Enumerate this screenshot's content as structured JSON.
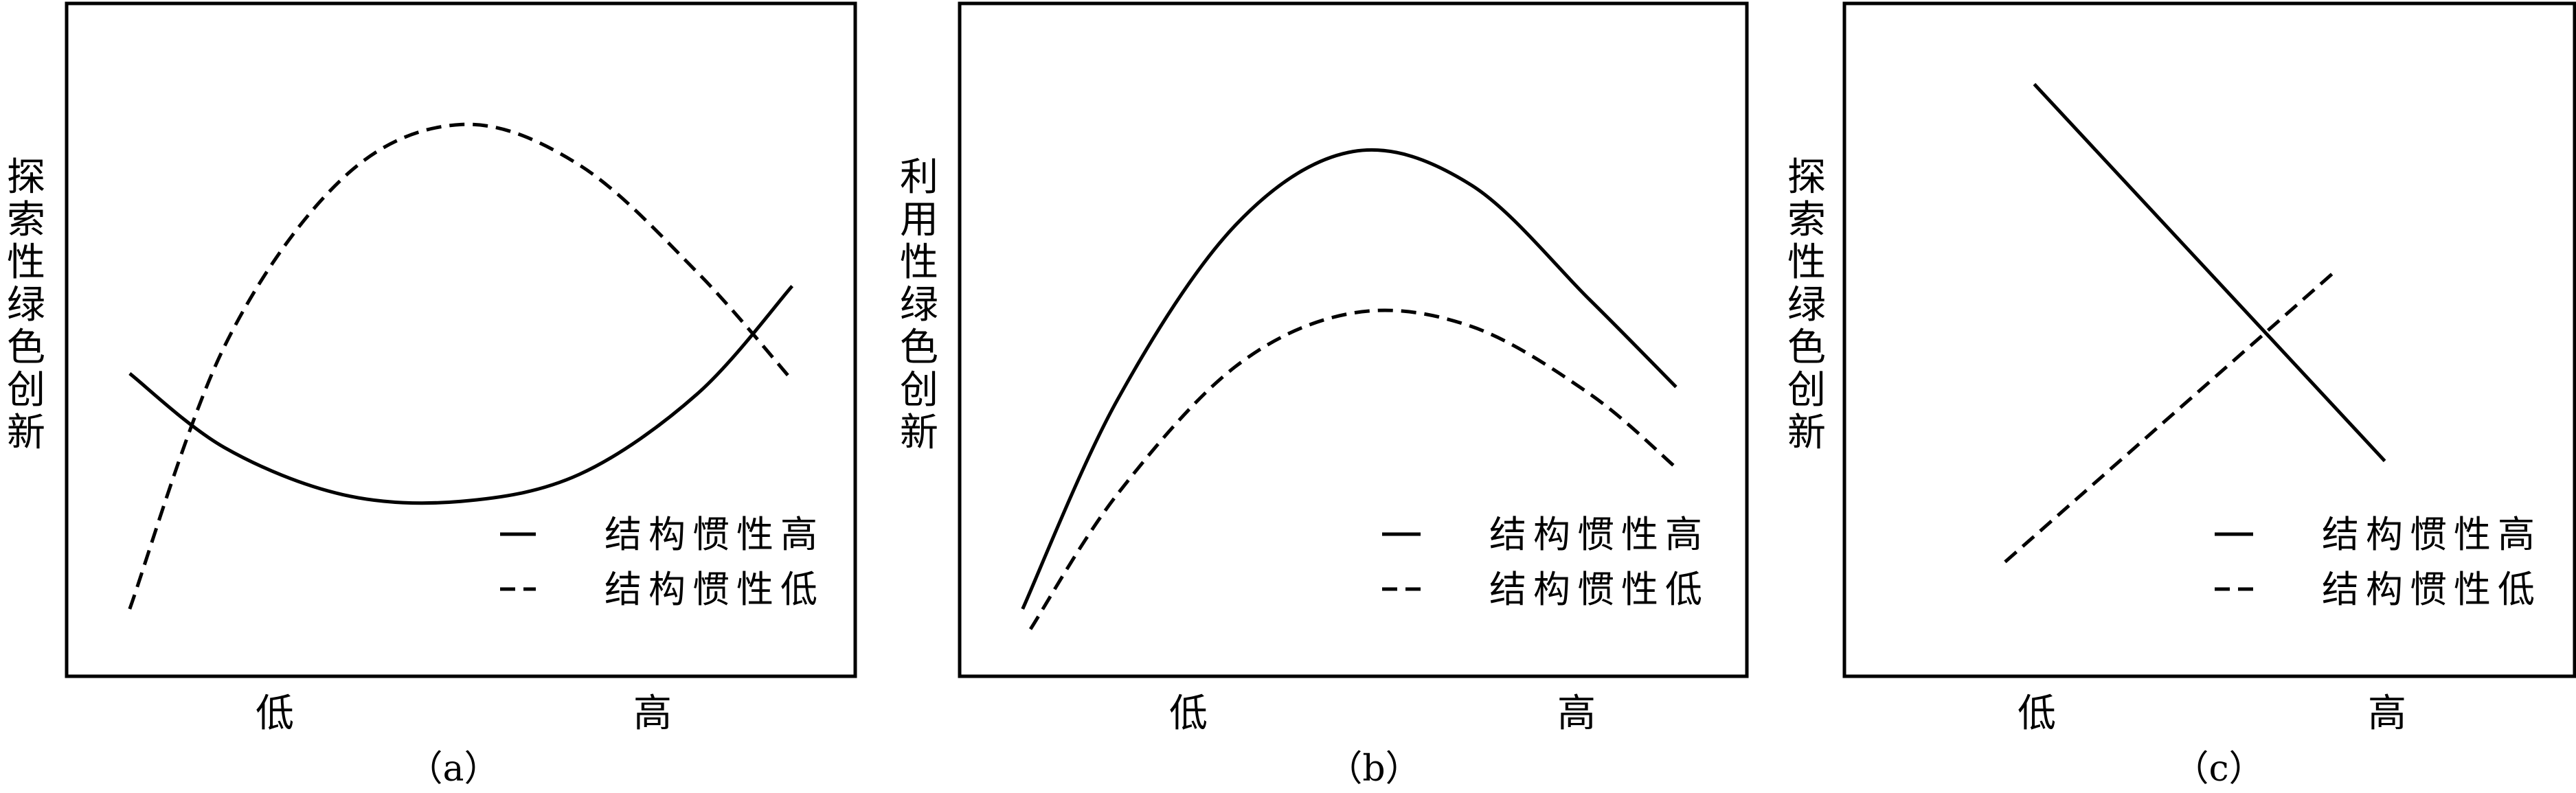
{
  "chart_data": [
    {
      "type": "line",
      "panel_label": "（a）",
      "ylabel": "探索性绿色创新",
      "xlabel": "",
      "x_ticks": [
        "低",
        "高"
      ],
      "legend": {
        "placement": "bottom-right"
      },
      "series": [
        {
          "name": "结构惯性高",
          "style": "solid",
          "x": [
            0.08,
            0.2,
            0.35,
            0.5,
            0.65,
            0.8,
            0.92
          ],
          "y": [
            0.45,
            0.34,
            0.27,
            0.26,
            0.3,
            0.42,
            0.58
          ]
        },
        {
          "name": "结构惯性低",
          "style": "dashed",
          "x": [
            0.08,
            0.2,
            0.35,
            0.5,
            0.65,
            0.8,
            0.92
          ],
          "y": [
            0.1,
            0.49,
            0.74,
            0.82,
            0.76,
            0.6,
            0.44
          ]
        }
      ]
    },
    {
      "type": "line",
      "panel_label": "（b）",
      "ylabel": "利用性绿色创新",
      "xlabel": "",
      "x_ticks": [
        "低",
        "高"
      ],
      "legend": {
        "placement": "bottom-right"
      },
      "series": [
        {
          "name": "结构惯性高",
          "style": "solid",
          "x": [
            0.08,
            0.2,
            0.35,
            0.5,
            0.65,
            0.8,
            0.91
          ],
          "y": [
            0.1,
            0.41,
            0.67,
            0.78,
            0.73,
            0.56,
            0.43
          ]
        },
        {
          "name": "结构惯性低",
          "style": "dashed",
          "x": [
            0.09,
            0.2,
            0.35,
            0.5,
            0.65,
            0.8,
            0.91
          ],
          "y": [
            0.07,
            0.27,
            0.46,
            0.54,
            0.52,
            0.42,
            0.31
          ]
        }
      ]
    },
    {
      "type": "line",
      "panel_label": "（c）",
      "ylabel": "探索性绿色创新",
      "xlabel": "",
      "x_ticks": [
        "低",
        "高"
      ],
      "legend": {
        "placement": "bottom-right"
      },
      "series": [
        {
          "name": "结构惯性高",
          "style": "solid",
          "x": [
            0.26,
            0.74
          ],
          "y": [
            0.88,
            0.32
          ]
        },
        {
          "name": "结构惯性低",
          "style": "dashed",
          "x": [
            0.22,
            0.67
          ],
          "y": [
            0.17,
            0.6
          ]
        }
      ]
    }
  ]
}
